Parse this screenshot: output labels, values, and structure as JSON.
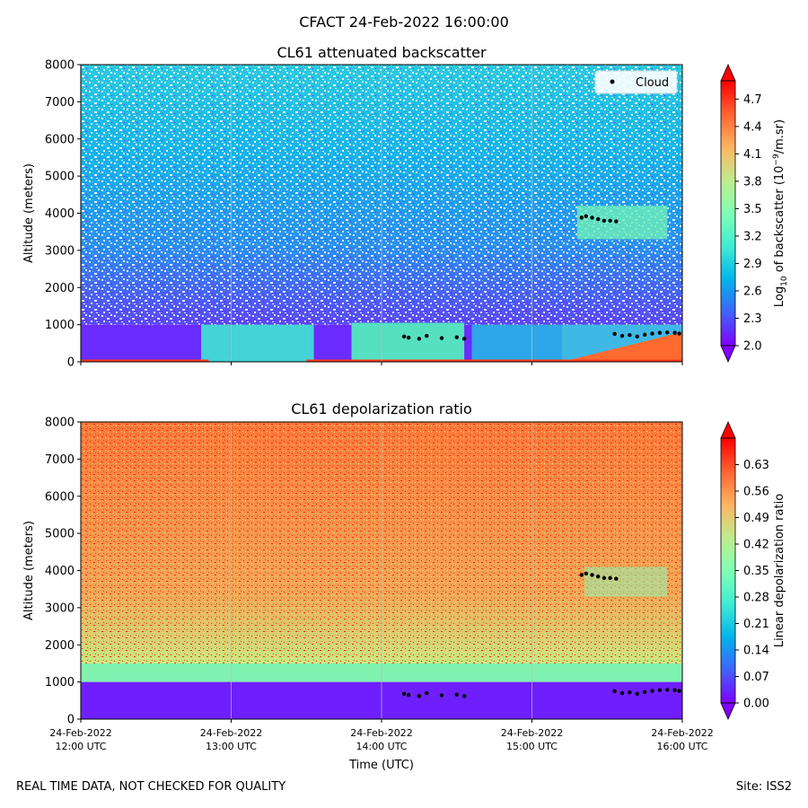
{
  "figure": {
    "title": "CFACT 24-Feb-2022 16:00:00",
    "footer_left": "REAL TIME DATA, NOT CHECKED FOR QUALITY",
    "footer_right": "Site: ISS2"
  },
  "chart_data": [
    {
      "type": "heatmap",
      "title": "CL61 attenuated backscatter",
      "xlabel": "",
      "ylabel": "Altitude (meters)",
      "ylim": [
        0,
        8000
      ],
      "yticks": [
        0,
        1000,
        2000,
        3000,
        4000,
        5000,
        6000,
        7000,
        8000
      ],
      "xlim_hours": [
        12,
        16
      ],
      "colormap": "rainbow",
      "colorbar": {
        "label_prefix": "Log",
        "label_sub": "10",
        "label_mid": " of backscatter (10",
        "label_sup": "−9",
        "label_suffix": "/m.sr)",
        "range": [
          2.0,
          4.9
        ],
        "ticks": [
          "2.0",
          "2.3",
          "2.6",
          "2.9",
          "3.2",
          "3.5",
          "3.8",
          "4.1",
          "4.4",
          "4.7"
        ]
      },
      "legend": {
        "label": "Cloud",
        "location": "top-right"
      },
      "cloud_points": [
        {
          "t": 14.15,
          "alt": 680
        },
        {
          "t": 14.18,
          "alt": 650
        },
        {
          "t": 14.25,
          "alt": 620
        },
        {
          "t": 14.3,
          "alt": 700
        },
        {
          "t": 14.4,
          "alt": 640
        },
        {
          "t": 14.5,
          "alt": 660
        },
        {
          "t": 14.55,
          "alt": 620
        },
        {
          "t": 15.33,
          "alt": 3880
        },
        {
          "t": 15.36,
          "alt": 3920
        },
        {
          "t": 15.4,
          "alt": 3880
        },
        {
          "t": 15.44,
          "alt": 3840
        },
        {
          "t": 15.48,
          "alt": 3800
        },
        {
          "t": 15.52,
          "alt": 3800
        },
        {
          "t": 15.56,
          "alt": 3780
        },
        {
          "t": 15.55,
          "alt": 750
        },
        {
          "t": 15.6,
          "alt": 700
        },
        {
          "t": 15.65,
          "alt": 720
        },
        {
          "t": 15.7,
          "alt": 680
        },
        {
          "t": 15.75,
          "alt": 730
        },
        {
          "t": 15.8,
          "alt": 760
        },
        {
          "t": 15.85,
          "alt": 780
        },
        {
          "t": 15.9,
          "alt": 790
        },
        {
          "t": 15.95,
          "alt": 780
        },
        {
          "t": 15.98,
          "alt": 760
        }
      ]
    },
    {
      "type": "heatmap",
      "title": "CL61 depolarization ratio",
      "xlabel": "Time (UTC)",
      "ylabel": "Altitude (meters)",
      "ylim": [
        0,
        8000
      ],
      "yticks": [
        0,
        1000,
        2000,
        3000,
        4000,
        5000,
        6000,
        7000,
        8000
      ],
      "xlim_hours": [
        12,
        16
      ],
      "xtick_labels": [
        {
          "line1": "24-Feb-2022",
          "line2": "12:00 UTC"
        },
        {
          "line1": "24-Feb-2022",
          "line2": "13:00 UTC"
        },
        {
          "line1": "24-Feb-2022",
          "line2": "14:00 UTC"
        },
        {
          "line1": "24-Feb-2022",
          "line2": "15:00 UTC"
        },
        {
          "line1": "24-Feb-2022",
          "line2": "16:00 UTC"
        }
      ],
      "colormap": "rainbow",
      "colorbar": {
        "label": "Linear depolarization ratio",
        "range": [
          0.0,
          0.7
        ],
        "ticks": [
          "0.00",
          "0.07",
          "0.14",
          "0.21",
          "0.28",
          "0.35",
          "0.42",
          "0.49",
          "0.56",
          "0.63"
        ]
      },
      "cloud_points": [
        {
          "t": 14.15,
          "alt": 680
        },
        {
          "t": 14.18,
          "alt": 650
        },
        {
          "t": 14.25,
          "alt": 620
        },
        {
          "t": 14.3,
          "alt": 700
        },
        {
          "t": 14.4,
          "alt": 640
        },
        {
          "t": 14.5,
          "alt": 660
        },
        {
          "t": 14.55,
          "alt": 620
        },
        {
          "t": 15.33,
          "alt": 3880
        },
        {
          "t": 15.36,
          "alt": 3920
        },
        {
          "t": 15.4,
          "alt": 3880
        },
        {
          "t": 15.44,
          "alt": 3840
        },
        {
          "t": 15.48,
          "alt": 3800
        },
        {
          "t": 15.52,
          "alt": 3800
        },
        {
          "t": 15.56,
          "alt": 3780
        },
        {
          "t": 15.55,
          "alt": 750
        },
        {
          "t": 15.6,
          "alt": 700
        },
        {
          "t": 15.65,
          "alt": 720
        },
        {
          "t": 15.7,
          "alt": 680
        },
        {
          "t": 15.75,
          "alt": 730
        },
        {
          "t": 15.8,
          "alt": 760
        },
        {
          "t": 15.85,
          "alt": 780
        },
        {
          "t": 15.9,
          "alt": 790
        },
        {
          "t": 15.95,
          "alt": 780
        },
        {
          "t": 15.98,
          "alt": 760
        }
      ]
    }
  ]
}
